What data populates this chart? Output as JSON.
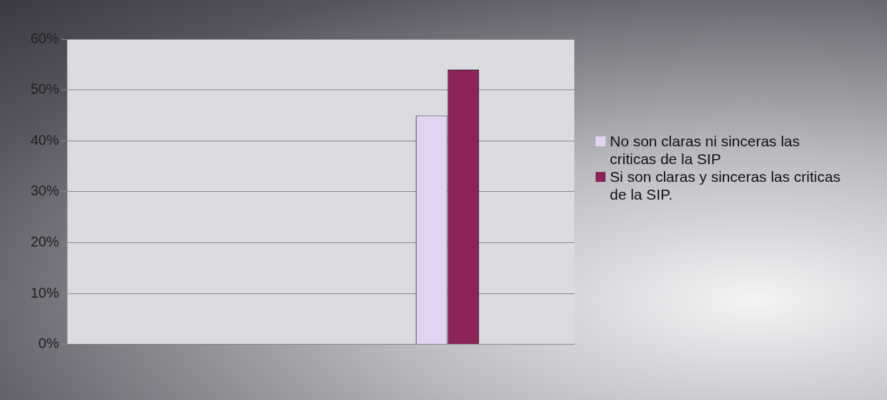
{
  "chart_data": {
    "type": "bar",
    "categories": [
      null,
      null
    ],
    "series": [
      {
        "name": "No son claras ni sinceras las criticas de la SIP",
        "color": "#e2d4f0",
        "values": [
          null,
          45
        ]
      },
      {
        "name": "Si son claras y sinceras las criticas de la SIP.",
        "color": "#8b2358",
        "values": [
          null,
          54
        ]
      }
    ],
    "ylim": [
      0,
      60
    ],
    "yticks": [
      {
        "value": 0,
        "label": "0%"
      },
      {
        "value": 10,
        "label": "10%"
      },
      {
        "value": 20,
        "label": "20%"
      },
      {
        "value": 30,
        "label": "30%"
      },
      {
        "value": 40,
        "label": "40%"
      },
      {
        "value": 50,
        "label": "50%"
      },
      {
        "value": 60,
        "label": "60%"
      }
    ],
    "grid": "y",
    "legend": "right"
  }
}
